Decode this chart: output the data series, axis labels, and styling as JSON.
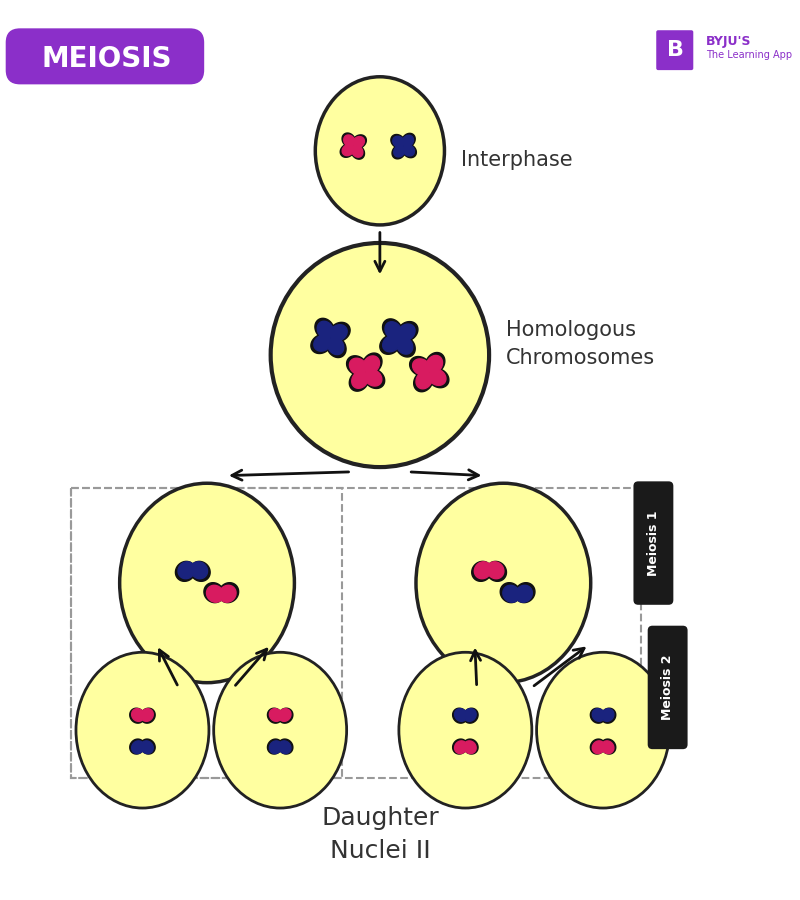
{
  "title": "MEIOSIS",
  "title_bg": "#8B2FC9",
  "title_color": "#FFFFFF",
  "bg_color": "#FFFFFF",
  "cell_fill": "#FFFFA0",
  "cell_edge": "#222222",
  "pink_color": "#D81B60",
  "blue_color": "#1A237E",
  "dark_outline": "#111111",
  "label_color": "#333333",
  "meiosis_badge_color": "#1a1a1a",
  "meiosis_badge_text": "#FFFFFF",
  "labels": {
    "interphase": "Interphase",
    "homologous": "Homologous\nChromosomes",
    "daughter": "Daughter\nNuclei II",
    "meiosis1": "Meiosis 1",
    "meiosis2": "Meiosis 2"
  }
}
